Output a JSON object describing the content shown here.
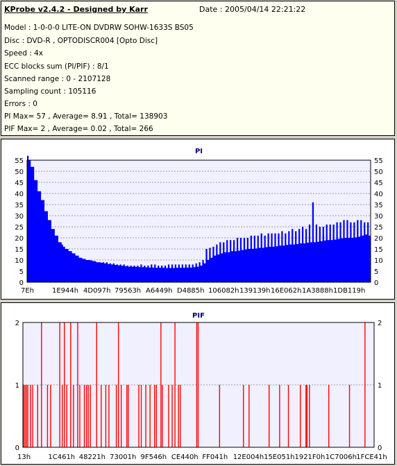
{
  "info": {
    "title": "KProbe v2.4.2 - Designed by Karr",
    "date": "Date : 2005/04/14 22:21:22",
    "lines": [
      "Model : 1-0-0-0 LITE-ON DVDRW SOHW-1633S BS05",
      "Disc : DVD-R , OPTODISCR004 [Opto Disc]",
      "Speed : 4x",
      "ECC blocks sum (PI/PIF) : 8/1",
      "Scanned range : 0 - 2107128",
      "Sampling count : 105116",
      "Errors : 0",
      "PI Max= 57 , Average= 8.91 , Total= 138903",
      "PIF Max= 2 , Average= 0.02 , Total= 266"
    ]
  },
  "colors": {
    "pi_fill": "#0000ff",
    "pif_bar": "#ff0000",
    "plot_bg": "#f0f0ff",
    "grid": "#808080",
    "title": "#000080"
  },
  "chart_data": [
    {
      "type": "area",
      "title": "PI",
      "ylim": [
        0,
        55
      ],
      "yticks": [
        "0",
        "5",
        "10",
        "15",
        "20",
        "25",
        "30",
        "35",
        "40",
        "45",
        "50",
        "55"
      ],
      "xtick_labels": [
        "7Eh",
        "1E944h",
        "4D097h",
        "79563h",
        "A6449h",
        "D4885h",
        "106082h",
        "139139h",
        "16E062h",
        "1A3888h",
        "1DB119h"
      ],
      "grid": true,
      "series": [
        {
          "values": [
            55,
            52,
            46,
            41,
            37,
            32,
            28,
            24,
            21,
            18,
            16,
            15,
            14,
            13,
            12,
            11,
            10.5,
            10,
            9.8,
            9.5,
            9,
            8.8,
            8.5,
            8.2,
            8,
            7.8,
            7.6,
            7.4,
            7.2,
            7,
            7,
            6.9,
            6.8,
            6.8,
            6.7,
            6.6,
            6.6,
            6.5,
            6.5,
            6.5,
            6.4,
            6.4,
            6.4,
            6.5,
            6.5,
            6.5,
            6.6,
            6.6,
            6.8,
            7,
            7.5,
            8.5,
            10,
            11,
            12,
            12.5,
            13,
            13.5,
            13.5,
            14,
            14,
            14.2,
            14.5,
            14.8,
            15,
            15,
            15.2,
            15.5,
            15.5,
            15.8,
            16,
            16,
            16.2,
            16.5,
            16.5,
            16.8,
            17,
            17,
            17.2,
            17.5,
            17.5,
            17.8,
            18,
            18,
            18.2,
            18.5,
            18.8,
            19,
            19,
            19.2,
            19.5,
            19.8,
            20,
            20,
            20,
            20.2,
            20.5,
            21,
            21.5,
            21
          ],
          "peaks": [
            57,
            50,
            42,
            35,
            30,
            25,
            22,
            20,
            19,
            18,
            17,
            15,
            14,
            13,
            12,
            11,
            10.5,
            10,
            10,
            9.5,
            9,
            9,
            9,
            9,
            8.5,
            8.5,
            8,
            8,
            8,
            7.5,
            7.5,
            7.5,
            7.5,
            8,
            7.5,
            7.5,
            8,
            8,
            7.5,
            7.5,
            7.5,
            8,
            8,
            8,
            8,
            8,
            8,
            8,
            8,
            8.5,
            9,
            10,
            15,
            15.5,
            16,
            17,
            18,
            18,
            19,
            19,
            19,
            20,
            20,
            20,
            20,
            21,
            21,
            21,
            22,
            21,
            22,
            22,
            22,
            22,
            23,
            22,
            23,
            24,
            23,
            24,
            25,
            24,
            26,
            36,
            26,
            25,
            25,
            26,
            26,
            26,
            27,
            27,
            28,
            28,
            27,
            27,
            28,
            28,
            27,
            27
          ]
        }
      ]
    },
    {
      "type": "bar",
      "title": "PIF",
      "ylim": [
        0,
        2
      ],
      "yticks": [
        "0",
        "1",
        "2"
      ],
      "xtick_labels": [
        "13h",
        "1C461h",
        "48221h",
        "73001h",
        "9F546h",
        "CE440h",
        "FF041h",
        "12E004h",
        "15E051h",
        "1921F0h",
        "1C7006h",
        "1FCE41h"
      ],
      "grid": true,
      "series": [
        {
          "x": [
            0.2,
            0.6,
            1.0,
            1.4,
            2.2,
            2.8,
            4.2,
            5.3,
            7.0,
            7.9,
            10.5,
            11.2,
            11.8,
            12.5,
            13.6,
            14.4,
            15.6,
            16.2,
            17.5,
            18.1,
            18.6,
            19.2,
            21.0,
            22.3,
            23.6,
            24.5,
            26.6,
            27.2,
            28.0,
            29.6,
            30.0,
            33.0,
            33.7,
            35.0,
            36.2,
            37.5,
            38.0,
            39.3,
            39.7,
            41.5,
            42.5,
            43.3,
            44.3,
            44.8,
            49.5,
            49.9,
            56.0,
            62.8,
            64.4,
            70.1,
            73.1,
            75.6,
            79.0,
            80.6,
            80.9,
            81.6,
            87.1,
            93.0,
            97.4
          ],
          "values": [
            1,
            1,
            1,
            1,
            1,
            1,
            1,
            2,
            1,
            1,
            2,
            1,
            2,
            1,
            2,
            1,
            2,
            1,
            1,
            1,
            1,
            1,
            2,
            1,
            1,
            1,
            1,
            2,
            1,
            1,
            1,
            1,
            1,
            1,
            1,
            1,
            1,
            2,
            1,
            1,
            1,
            2,
            1,
            1,
            2,
            2,
            1,
            1,
            1,
            1,
            1,
            1,
            1,
            1,
            1,
            1,
            1,
            1,
            2
          ]
        }
      ]
    }
  ]
}
